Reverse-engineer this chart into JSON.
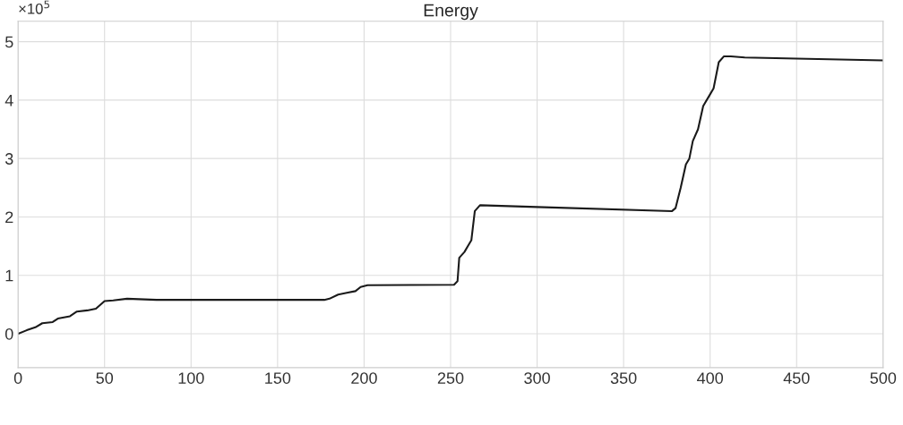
{
  "chart_data": {
    "type": "line",
    "title": "Energy",
    "x": [
      0,
      5,
      10,
      14,
      20,
      23,
      30,
      34,
      40,
      45,
      50,
      55,
      63,
      80,
      177,
      180,
      185,
      190,
      195,
      198,
      202,
      252,
      254,
      255,
      258,
      260,
      262,
      264,
      267,
      300,
      378,
      380,
      383,
      386,
      388,
      390,
      393,
      396,
      400,
      402,
      405,
      408,
      412,
      420,
      450,
      500
    ],
    "series": [
      {
        "color": "#1a1a1a",
        "values": [
          0,
          0.06,
          0.11,
          0.18,
          0.2,
          0.26,
          0.3,
          0.38,
          0.4,
          0.43,
          0.56,
          0.57,
          0.6,
          0.58,
          0.58,
          0.6,
          0.67,
          0.7,
          0.73,
          0.8,
          0.83,
          0.84,
          0.9,
          1.3,
          1.4,
          1.5,
          1.6,
          2.1,
          2.2,
          2.17,
          2.1,
          2.15,
          2.5,
          2.9,
          3.0,
          3.3,
          3.5,
          3.9,
          4.1,
          4.2,
          4.65,
          4.75,
          4.75,
          4.73,
          4.71,
          4.68
        ]
      }
    ],
    "xlim": [
      0,
      500
    ],
    "xticks": [
      0,
      50,
      100,
      150,
      200,
      250,
      300,
      350,
      400,
      450,
      500
    ],
    "ylim": [
      -0.58,
      5.35
    ],
    "yticks": [
      0,
      1,
      2,
      3,
      4,
      5
    ],
    "annotations": [
      "×10$^{5}$"
    ],
    "grid": true,
    "marker": "none",
    "line_style": "solid"
  }
}
